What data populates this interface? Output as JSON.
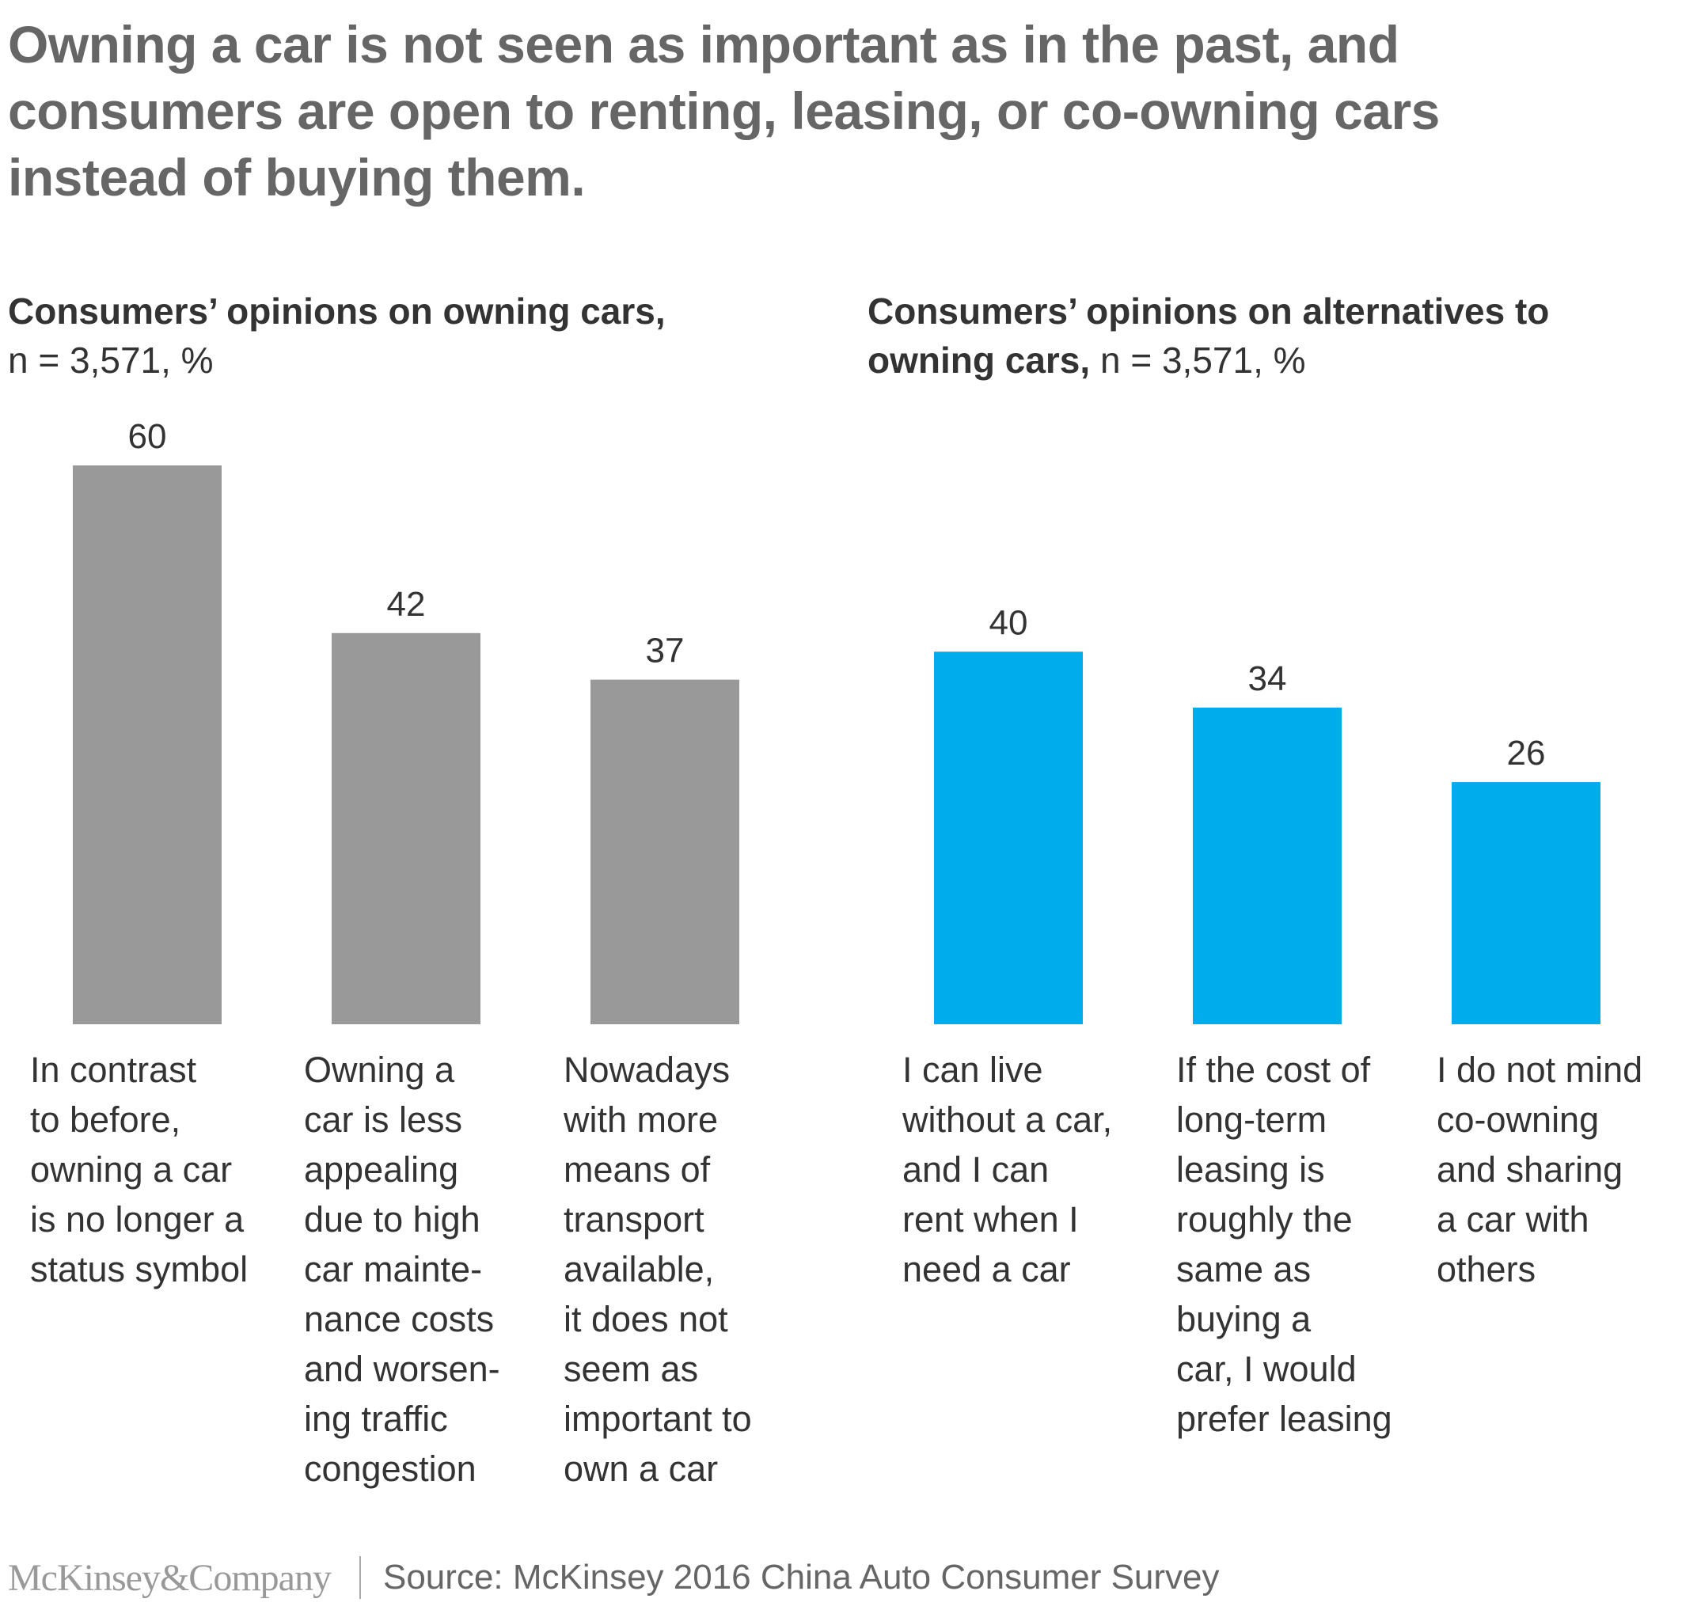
{
  "title": "Owning a car is not seen as important as in the past, and consumers are open to renting, leasing, or co-owning cars instead of buying them.",
  "colors": {
    "gray_bar": "#999999",
    "blue_bar": "#00ACEC",
    "text": "#333333",
    "title": "#666666"
  },
  "chart_data": [
    {
      "type": "bar",
      "title_bold": "Consumers’ opinions on owning cars,",
      "title_regular": "n = 3,571, %",
      "series_color": "#999999",
      "categories": [
        "In contrast\nto before,\nowning a car\nis no longer a\nstatus symbol",
        "Owning a\ncar is less\nappealing\ndue to high\ncar mainte-\nnance costs\nand worsen-\ning traffic\ncongestion",
        "Nowadays\nwith more\nmeans of\ntransport\navailable,\nit does not\nseem as\nimportant to\nown a car"
      ],
      "values": [
        60,
        42,
        37
      ],
      "value_labels": [
        "60",
        "42",
        "37"
      ],
      "ylim": [
        0,
        60
      ],
      "grid": false,
      "xlabel": "",
      "ylabel": ""
    },
    {
      "type": "bar",
      "title_bold": "Consumers’ opinions on alternatives to owning cars,",
      "title_regular": "n = 3,571, %",
      "series_color": "#00ACEC",
      "categories": [
        "I can live\nwithout a car,\nand I can\nrent when I\nneed a car",
        "If the cost of\nlong-term\nleasing is\nroughly the\nsame as\nbuying a\ncar, I would\nprefer leasing",
        "I do not mind\nco-owning\nand sharing\na car with\nothers"
      ],
      "values": [
        40,
        34,
        26
      ],
      "value_labels": [
        "40",
        "34",
        "26"
      ],
      "ylim": [
        0,
        60
      ],
      "grid": false,
      "xlabel": "",
      "ylabel": ""
    }
  ],
  "footer": {
    "logo": "McKinsey&Company",
    "source": "Source: McKinsey 2016 China Auto Consumer Survey"
  }
}
